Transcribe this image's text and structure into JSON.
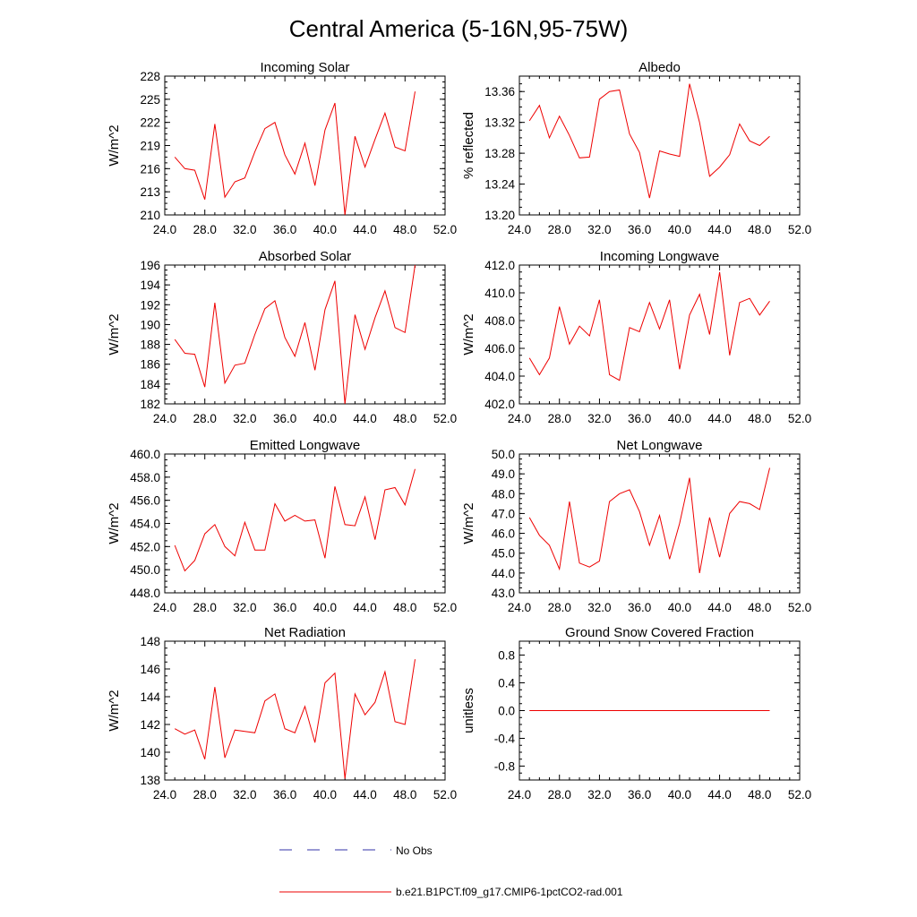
{
  "figure": {
    "title": "Central America (5-16N,95-75W)"
  },
  "legend": {
    "items": [
      {
        "label": "No Obs",
        "color": "#3333aa",
        "style": "dashed"
      },
      {
        "label": "b.e21.B1PCT.f09_g17.CMIP6-1pctCO2-rad.001",
        "color": "#ee0000",
        "style": "solid"
      }
    ]
  },
  "chart_data": [
    {
      "type": "line",
      "title": "Incoming Solar",
      "ylabel": "W/m^2",
      "xlim": [
        24,
        52
      ],
      "ylim": [
        210,
        228
      ],
      "xticks": [
        "24.0",
        "28.0",
        "32.0",
        "36.0",
        "40.0",
        "44.0",
        "48.0",
        "52.0"
      ],
      "yticks": [
        "210",
        "213",
        "216",
        "219",
        "222",
        "225",
        "228"
      ],
      "x": [
        25,
        26,
        27,
        28,
        29,
        30,
        31,
        32,
        33,
        34,
        35,
        36,
        37,
        38,
        39,
        40,
        41,
        42,
        43,
        44,
        45,
        46,
        47,
        48,
        49
      ],
      "series": [
        {
          "color": "#ee0000",
          "values": [
            217.5,
            216.0,
            215.8,
            212.0,
            221.8,
            212.3,
            214.3,
            214.8,
            218.2,
            221.2,
            222.0,
            217.8,
            215.3,
            219.3,
            213.8,
            221.0,
            224.5,
            210.0,
            220.2,
            216.2,
            219.8,
            223.2,
            218.8,
            218.3,
            226.0
          ]
        }
      ]
    },
    {
      "type": "line",
      "title": "Albedo",
      "ylabel": "% reflected",
      "xlim": [
        24,
        52
      ],
      "ylim": [
        13.2,
        13.38
      ],
      "xticks": [
        "24.0",
        "28.0",
        "32.0",
        "36.0",
        "40.0",
        "44.0",
        "48.0",
        "52.0"
      ],
      "yticks": [
        "13.20",
        "13.24",
        "13.28",
        "13.32",
        "13.36"
      ],
      "x": [
        25,
        26,
        27,
        28,
        29,
        30,
        31,
        32,
        33,
        34,
        35,
        36,
        37,
        38,
        39,
        40,
        41,
        42,
        43,
        44,
        45,
        46,
        47,
        48,
        49
      ],
      "series": [
        {
          "color": "#ee0000",
          "values": [
            13.322,
            13.342,
            13.3,
            13.328,
            13.303,
            13.274,
            13.275,
            13.35,
            13.36,
            13.362,
            13.305,
            13.281,
            13.222,
            13.283,
            13.279,
            13.276,
            13.37,
            13.32,
            13.25,
            13.262,
            13.278,
            13.318,
            13.296,
            13.29,
            13.302
          ]
        }
      ]
    },
    {
      "type": "line",
      "title": "Absorbed Solar",
      "ylabel": "W/m^2",
      "xlim": [
        24,
        52
      ],
      "ylim": [
        182,
        196
      ],
      "xticks": [
        "24.0",
        "28.0",
        "32.0",
        "36.0",
        "40.0",
        "44.0",
        "48.0",
        "52.0"
      ],
      "yticks": [
        "182",
        "184",
        "186",
        "188",
        "190",
        "192",
        "194",
        "196"
      ],
      "x": [
        25,
        26,
        27,
        28,
        29,
        30,
        31,
        32,
        33,
        34,
        35,
        36,
        37,
        38,
        39,
        40,
        41,
        42,
        43,
        44,
        45,
        46,
        47,
        48,
        49
      ],
      "series": [
        {
          "color": "#ee0000",
          "values": [
            188.5,
            187.1,
            187.0,
            183.7,
            192.2,
            184.1,
            185.9,
            186.1,
            189.0,
            191.6,
            192.4,
            188.7,
            186.8,
            190.2,
            185.4,
            191.5,
            194.4,
            182.0,
            191.0,
            187.5,
            190.7,
            193.4,
            189.7,
            189.2,
            196.0
          ]
        }
      ]
    },
    {
      "type": "line",
      "title": "Incoming Longwave",
      "ylabel": "W/m^2",
      "xlim": [
        24,
        52
      ],
      "ylim": [
        402.0,
        412.0
      ],
      "xticks": [
        "24.0",
        "28.0",
        "32.0",
        "36.0",
        "40.0",
        "44.0",
        "48.0",
        "52.0"
      ],
      "yticks": [
        "402.0",
        "404.0",
        "406.0",
        "408.0",
        "410.0",
        "412.0"
      ],
      "x": [
        25,
        26,
        27,
        28,
        29,
        30,
        31,
        32,
        33,
        34,
        35,
        36,
        37,
        38,
        39,
        40,
        41,
        42,
        43,
        44,
        45,
        46,
        47,
        48,
        49
      ],
      "series": [
        {
          "color": "#ee0000",
          "values": [
            405.3,
            404.1,
            405.3,
            409.0,
            406.3,
            407.6,
            406.9,
            409.5,
            404.1,
            403.7,
            407.5,
            407.2,
            409.3,
            407.4,
            409.5,
            404.5,
            408.4,
            409.9,
            407.0,
            411.5,
            405.5,
            409.3,
            409.6,
            408.4,
            409.4
          ]
        }
      ]
    },
    {
      "type": "line",
      "title": "Emitted Longwave",
      "ylabel": "W/m^2",
      "xlim": [
        24,
        52
      ],
      "ylim": [
        448.0,
        460.0
      ],
      "xticks": [
        "24.0",
        "28.0",
        "32.0",
        "36.0",
        "40.0",
        "44.0",
        "48.0",
        "52.0"
      ],
      "yticks": [
        "448.0",
        "450.0",
        "452.0",
        "454.0",
        "456.0",
        "458.0",
        "460.0"
      ],
      "x": [
        25,
        26,
        27,
        28,
        29,
        30,
        31,
        32,
        33,
        34,
        35,
        36,
        37,
        38,
        39,
        40,
        41,
        42,
        43,
        44,
        45,
        46,
        47,
        48,
        49
      ],
      "series": [
        {
          "color": "#ee0000",
          "values": [
            452.1,
            449.9,
            450.8,
            453.1,
            453.9,
            452.0,
            451.2,
            454.1,
            451.7,
            451.7,
            455.7,
            454.2,
            454.7,
            454.2,
            454.3,
            451.0,
            457.2,
            453.9,
            453.8,
            456.3,
            452.6,
            456.9,
            457.1,
            455.6,
            458.7
          ]
        }
      ]
    },
    {
      "type": "line",
      "title": "Net Longwave",
      "ylabel": "W/m^2",
      "xlim": [
        24,
        52
      ],
      "ylim": [
        43.0,
        50.0
      ],
      "xticks": [
        "24.0",
        "28.0",
        "32.0",
        "36.0",
        "40.0",
        "44.0",
        "48.0",
        "52.0"
      ],
      "yticks": [
        "43.0",
        "44.0",
        "45.0",
        "46.0",
        "47.0",
        "48.0",
        "49.0",
        "50.0"
      ],
      "x": [
        25,
        26,
        27,
        28,
        29,
        30,
        31,
        32,
        33,
        34,
        35,
        36,
        37,
        38,
        39,
        40,
        41,
        42,
        43,
        44,
        45,
        46,
        47,
        48,
        49
      ],
      "series": [
        {
          "color": "#ee0000",
          "values": [
            46.8,
            45.9,
            45.4,
            44.2,
            47.6,
            44.5,
            44.3,
            44.6,
            47.6,
            48.0,
            48.2,
            47.1,
            45.4,
            46.9,
            44.7,
            46.5,
            48.8,
            44.0,
            46.8,
            44.8,
            47.0,
            47.6,
            47.5,
            47.2,
            49.3
          ]
        }
      ]
    },
    {
      "type": "line",
      "title": "Net Radiation",
      "ylabel": "W/m^2",
      "xlim": [
        24,
        52
      ],
      "ylim": [
        138,
        148
      ],
      "xticks": [
        "24.0",
        "28.0",
        "32.0",
        "36.0",
        "40.0",
        "44.0",
        "48.0",
        "52.0"
      ],
      "yticks": [
        "138",
        "140",
        "142",
        "144",
        "146",
        "148"
      ],
      "x": [
        25,
        26,
        27,
        28,
        29,
        30,
        31,
        32,
        33,
        34,
        35,
        36,
        37,
        38,
        39,
        40,
        41,
        42,
        43,
        44,
        45,
        46,
        47,
        48,
        49
      ],
      "series": [
        {
          "color": "#ee0000",
          "values": [
            141.7,
            141.3,
            141.6,
            139.5,
            144.7,
            139.6,
            141.6,
            141.5,
            141.4,
            143.7,
            144.2,
            141.7,
            141.4,
            143.3,
            140.7,
            145.0,
            145.7,
            138.1,
            144.2,
            142.7,
            143.6,
            145.8,
            142.2,
            142.0,
            146.7
          ]
        }
      ]
    },
    {
      "type": "line",
      "title": "Ground Snow Covered Fraction",
      "ylabel": "unitless",
      "xlim": [
        24,
        52
      ],
      "ylim": [
        -1.0,
        1.0
      ],
      "xticks": [
        "24.0",
        "28.0",
        "32.0",
        "36.0",
        "40.0",
        "44.0",
        "48.0",
        "52.0"
      ],
      "yticks": [
        "-0.8",
        "-0.4",
        "0.0",
        "0.4",
        "0.8"
      ],
      "x": [
        25,
        26,
        27,
        28,
        29,
        30,
        31,
        32,
        33,
        34,
        35,
        36,
        37,
        38,
        39,
        40,
        41,
        42,
        43,
        44,
        45,
        46,
        47,
        48,
        49
      ],
      "series": [
        {
          "color": "#ee0000",
          "values": [
            0,
            0,
            0,
            0,
            0,
            0,
            0,
            0,
            0,
            0,
            0,
            0,
            0,
            0,
            0,
            0,
            0,
            0,
            0,
            0,
            0,
            0,
            0,
            0,
            0
          ]
        }
      ]
    }
  ]
}
